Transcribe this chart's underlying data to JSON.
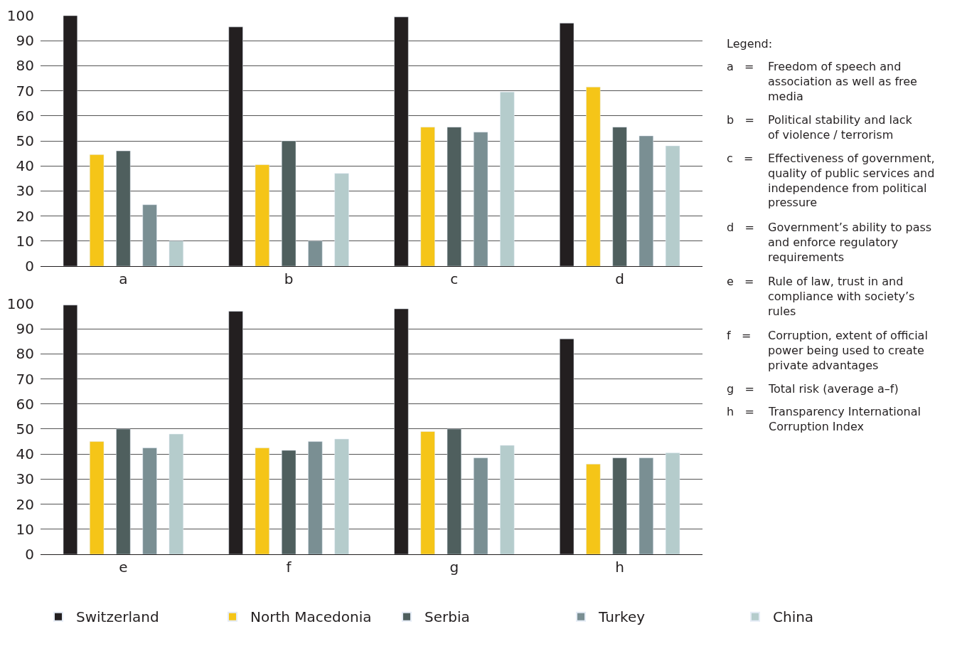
{
  "chart_data": [
    {
      "type": "bar",
      "categories": [
        "a",
        "b",
        "c",
        "d"
      ],
      "ylim": [
        0,
        100
      ],
      "yticks": [
        0,
        10,
        20,
        30,
        40,
        50,
        60,
        70,
        80,
        90,
        100
      ],
      "grid": "y",
      "legend": "bottom",
      "series": [
        {
          "name": "Switzerland",
          "color": "#231f20",
          "values": [
            100,
            95.5,
            99.5,
            97
          ]
        },
        {
          "name": "North Macedonia",
          "color": "#f5c518",
          "values": [
            44.5,
            40.5,
            55.5,
            71.5
          ]
        },
        {
          "name": "Serbia",
          "color": "#4f5f5e",
          "values": [
            46,
            50,
            55.5,
            55.5
          ]
        },
        {
          "name": "Turkey",
          "color": "#7a8f93",
          "values": [
            24.5,
            10,
            53.5,
            52
          ]
        },
        {
          "name": "China",
          "color": "#b5cccc",
          "values": [
            10,
            37,
            69.5,
            48
          ]
        }
      ],
      "annotations": [
        "Legend:",
        "a = Freedom of speech and association as well as free media",
        "b = Political stability and lack of violence / terrorism",
        "c = Effectiveness of government, quality of public services and independence from political pressure",
        "d = Government’s ability to pass and enforce regulatory requirements",
        "e = Rule of law, trust in and compliance with society’s rules",
        "f = Corruption, extent of official power being used to create private advantages",
        "g = Total risk (average a–f)",
        "h = Transparency International Corruption Index"
      ]
    },
    {
      "type": "bar",
      "categories": [
        "e",
        "f",
        "g",
        "h"
      ],
      "ylim": [
        0,
        100
      ],
      "yticks": [
        0,
        10,
        20,
        30,
        40,
        50,
        60,
        70,
        80,
        90,
        100
      ],
      "grid": "y",
      "legend": "bottom",
      "series": [
        {
          "name": "Switzerland",
          "color": "#231f20",
          "values": [
            99.5,
            97,
            98,
            86
          ]
        },
        {
          "name": "North Macedonia",
          "color": "#f5c518",
          "values": [
            45,
            42.5,
            49,
            36
          ]
        },
        {
          "name": "Serbia",
          "color": "#4f5f5e",
          "values": [
            50,
            41.5,
            50,
            38.5
          ]
        },
        {
          "name": "Turkey",
          "color": "#7a8f93",
          "values": [
            42.5,
            45,
            38.5,
            38.5
          ]
        },
        {
          "name": "China",
          "color": "#b5cccc",
          "values": [
            48,
            46,
            43.5,
            40.5
          ]
        }
      ]
    }
  ]
}
